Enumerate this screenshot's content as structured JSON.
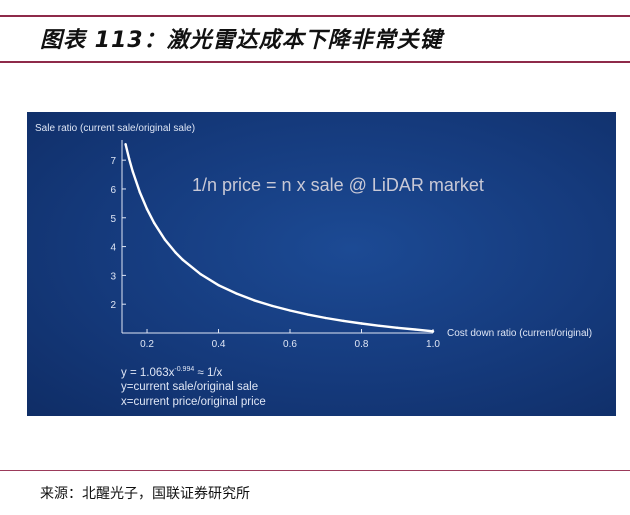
{
  "figure": {
    "title": "图表 113：激光雷达成本下降非常关键",
    "source": "来源：北醒光子，国联证券研究所"
  },
  "chart_data": {
    "type": "line",
    "ylabel": "Sale ratio (current sale/original sale)",
    "xlabel": "Cost down ratio (current/original)",
    "annotation": "1/n price = n x sale @ LiDAR market",
    "x_ticks": [
      "0.2",
      "0.4",
      "0.6",
      "0.8",
      "1.0"
    ],
    "y_ticks": [
      "2",
      "3",
      "4",
      "5",
      "6",
      "7"
    ],
    "xlim": [
      0.13,
      1.0
    ],
    "ylim": [
      1.0,
      7.7
    ],
    "formula": {
      "prefix": "y = 1.063x",
      "exponent": "-0.994",
      "suffix": " ≈ 1/x"
    },
    "legend_lines": [
      "y=current sale/original sale",
      "x=current price/original price"
    ],
    "series": [
      {
        "x": [
          0.14,
          0.15,
          0.16,
          0.18,
          0.2,
          0.22,
          0.25,
          0.28,
          0.3,
          0.35,
          0.4,
          0.45,
          0.5,
          0.55,
          0.6,
          0.65,
          0.7,
          0.75,
          0.8,
          0.85,
          0.9,
          0.95,
          1.0
        ],
        "values": [
          7.55,
          7.05,
          6.61,
          5.88,
          5.3,
          4.82,
          4.24,
          3.79,
          3.54,
          3.04,
          2.66,
          2.37,
          2.13,
          1.94,
          1.78,
          1.64,
          1.52,
          1.42,
          1.33,
          1.25,
          1.18,
          1.12,
          1.06
        ]
      }
    ],
    "colors": {
      "background": "#173a7a",
      "curve": "#ffffff",
      "text": "#dfe6f5",
      "annotation": "#c9c9d6"
    }
  }
}
